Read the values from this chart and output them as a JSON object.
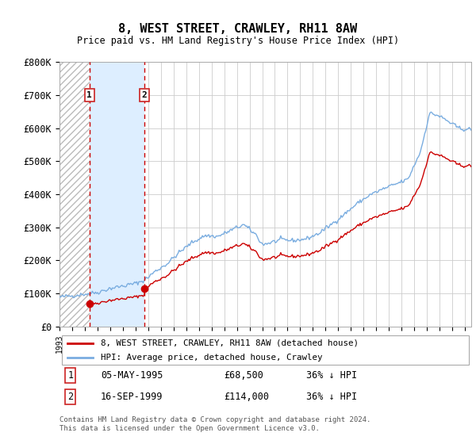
{
  "title": "8, WEST STREET, CRAWLEY, RH11 8AW",
  "subtitle": "Price paid vs. HM Land Registry's House Price Index (HPI)",
  "ylim": [
    0,
    800000
  ],
  "yticks": [
    0,
    100000,
    200000,
    300000,
    400000,
    500000,
    600000,
    700000,
    800000
  ],
  "ytick_labels": [
    "£0",
    "£100K",
    "£200K",
    "£300K",
    "£400K",
    "£500K",
    "£600K",
    "£700K",
    "£800K"
  ],
  "purchase1_year": 1995.37,
  "purchase1_price": 68500,
  "purchase2_year": 1999.71,
  "purchase2_price": 114000,
  "legend_red": "8, WEST STREET, CRAWLEY, RH11 8AW (detached house)",
  "legend_blue": "HPI: Average price, detached house, Crawley",
  "purchase1_date": "05-MAY-1995",
  "purchase1_amount": "£68,500",
  "purchase1_pct": "36% ↓ HPI",
  "purchase2_date": "16-SEP-1999",
  "purchase2_amount": "£114,000",
  "purchase2_pct": "36% ↓ HPI",
  "footer": "Contains HM Land Registry data © Crown copyright and database right 2024.\nThis data is licensed under the Open Government Licence v3.0.",
  "red_color": "#cc0000",
  "blue_color": "#7aade0",
  "shade_color": "#ddeeff",
  "background_color": "#ffffff",
  "grid_color": "#cccccc",
  "xleft": 1993.0,
  "xright": 2025.5
}
